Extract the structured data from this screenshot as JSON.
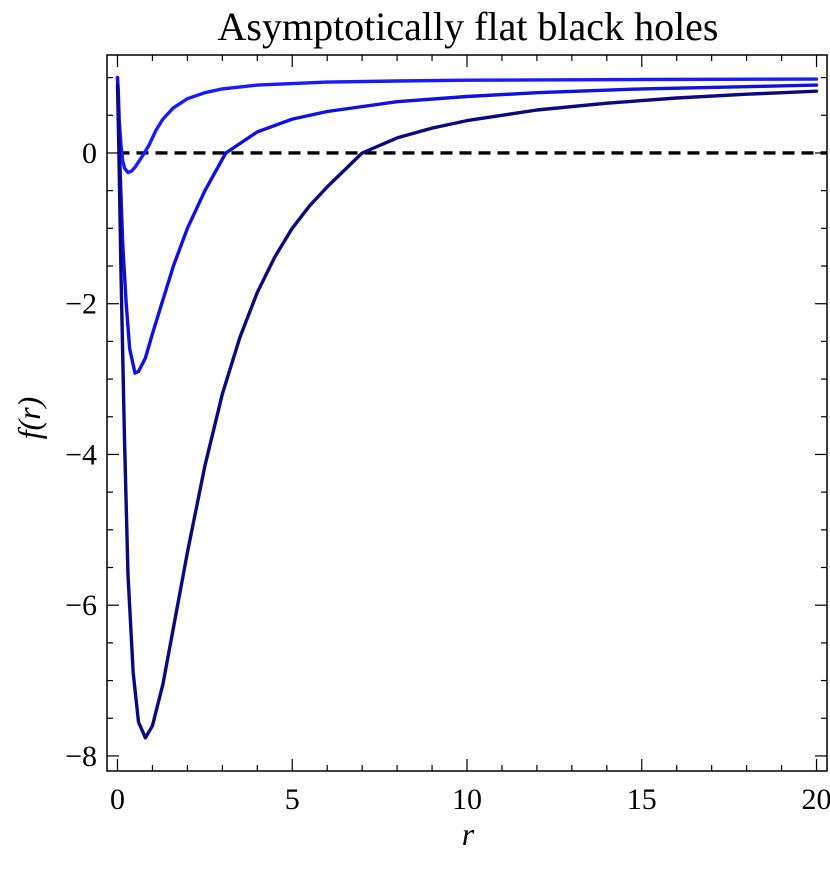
{
  "chart_data": {
    "type": "line",
    "title": "Asymptotically flat black holes",
    "xlabel": "r",
    "ylabel": "f(r)",
    "xlim": [
      -0.3,
      20.3
    ],
    "ylim": [
      -8.2,
      1.3
    ],
    "x_ticks": [
      {
        "value": 0,
        "label": "0"
      },
      {
        "value": 5,
        "label": "5"
      },
      {
        "value": 10,
        "label": "10"
      },
      {
        "value": 15,
        "label": "15"
      },
      {
        "value": 20,
        "label": "20"
      }
    ],
    "y_ticks": [
      {
        "value": 0,
        "label": "0"
      },
      {
        "value": -2,
        "label": "−2"
      },
      {
        "value": -4,
        "label": "−4"
      },
      {
        "value": -6,
        "label": "−6"
      },
      {
        "value": -8,
        "label": "−8"
      }
    ],
    "grid": false,
    "reference_lines": [
      {
        "y": 0,
        "style": "dashed",
        "color": "#000000"
      }
    ],
    "series": [
      {
        "color": "#1a1aff",
        "points": [
          [
            0,
            1.0
          ],
          [
            0.02,
            0.85
          ],
          [
            0.05,
            0.45
          ],
          [
            0.1,
            0.1
          ],
          [
            0.15,
            -0.1
          ],
          [
            0.2,
            -0.2
          ],
          [
            0.3,
            -0.26
          ],
          [
            0.4,
            -0.24
          ],
          [
            0.5,
            -0.19
          ],
          [
            0.7,
            -0.05
          ],
          [
            0.9,
            0.1
          ],
          [
            1.1,
            0.3
          ],
          [
            1.3,
            0.45
          ],
          [
            1.6,
            0.6
          ],
          [
            2,
            0.72
          ],
          [
            2.5,
            0.8
          ],
          [
            3,
            0.85
          ],
          [
            4,
            0.9
          ],
          [
            6,
            0.94
          ],
          [
            8,
            0.955
          ],
          [
            10,
            0.965
          ],
          [
            15,
            0.975
          ],
          [
            20,
            0.98
          ]
        ]
      },
      {
        "color": "#1010e0",
        "points": [
          [
            0,
            1.0
          ],
          [
            0.03,
            0.6
          ],
          [
            0.08,
            -0.3
          ],
          [
            0.15,
            -1.2
          ],
          [
            0.25,
            -2.0
          ],
          [
            0.35,
            -2.6
          ],
          [
            0.5,
            -2.92
          ],
          [
            0.6,
            -2.9
          ],
          [
            0.8,
            -2.72
          ],
          [
            1,
            -2.4
          ],
          [
            1.3,
            -1.95
          ],
          [
            1.6,
            -1.5
          ],
          [
            2,
            -1.0
          ],
          [
            2.5,
            -0.5
          ],
          [
            3.1,
            0.0
          ],
          [
            4,
            0.28
          ],
          [
            5,
            0.45
          ],
          [
            6,
            0.55
          ],
          [
            8,
            0.68
          ],
          [
            10,
            0.75
          ],
          [
            12,
            0.8
          ],
          [
            15,
            0.85
          ],
          [
            20,
            0.9
          ]
        ]
      },
      {
        "color": "#0a0a80",
        "points": [
          [
            0,
            0.9
          ],
          [
            0.04,
            0.0
          ],
          [
            0.1,
            -1.6
          ],
          [
            0.2,
            -3.8
          ],
          [
            0.3,
            -5.6
          ],
          [
            0.45,
            -6.9
          ],
          [
            0.6,
            -7.55
          ],
          [
            0.8,
            -7.76
          ],
          [
            1,
            -7.6
          ],
          [
            1.3,
            -7.05
          ],
          [
            1.6,
            -6.3
          ],
          [
            2,
            -5.3
          ],
          [
            2.5,
            -4.15
          ],
          [
            3,
            -3.2
          ],
          [
            3.5,
            -2.45
          ],
          [
            4,
            -1.85
          ],
          [
            4.5,
            -1.38
          ],
          [
            5,
            -1.0
          ],
          [
            5.5,
            -0.7
          ],
          [
            6,
            -0.45
          ],
          [
            7,
            0.0
          ],
          [
            8,
            0.2
          ],
          [
            9,
            0.33
          ],
          [
            10,
            0.43
          ],
          [
            12,
            0.57
          ],
          [
            14,
            0.66
          ],
          [
            16,
            0.73
          ],
          [
            18,
            0.78
          ],
          [
            20,
            0.82
          ]
        ]
      }
    ]
  }
}
